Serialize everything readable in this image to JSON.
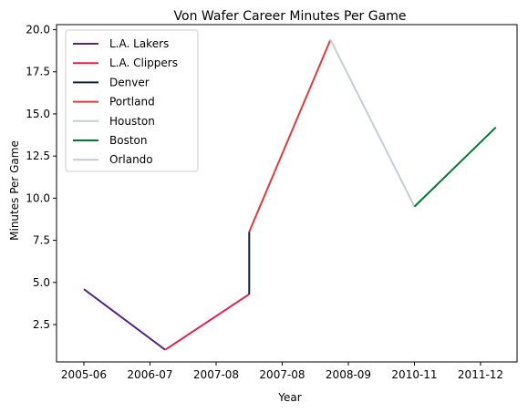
{
  "chart_data": {
    "type": "line",
    "title": "Von Wafer Career Minutes Per Game",
    "xlabel": "Year",
    "ylabel": "Minutes Per Game",
    "x_ticks": [
      "2005-06",
      "2006-07",
      "2007-08",
      "2007-08",
      "2008-09",
      "2010-11",
      "2011-12"
    ],
    "ylim": [
      0.28,
      20.3
    ],
    "y_ticks": [
      2.5,
      5.0,
      7.5,
      10.0,
      12.5,
      15.0,
      17.5,
      20.0
    ],
    "legend_position": "top-left",
    "grid": false,
    "series": [
      {
        "name": "L.A. Lakers",
        "color": "#552583",
        "points": [
          [
            0,
            4.6
          ],
          [
            1.23,
            1.0
          ]
        ]
      },
      {
        "name": "L.A. Clippers",
        "color": "#e0234e",
        "points": [
          [
            1.23,
            1.0
          ],
          [
            2.5,
            4.3
          ]
        ]
      },
      {
        "name": "Denver",
        "color": "#0e2240",
        "points": [
          [
            2.5,
            4.3
          ],
          [
            2.5,
            8.0
          ]
        ]
      },
      {
        "name": "Portland",
        "color": "#e03a3e",
        "points": [
          [
            2.5,
            8.0
          ],
          [
            3.73,
            19.4
          ]
        ]
      },
      {
        "name": "Houston",
        "color": "#c4ced4",
        "points": [
          [
            3.73,
            19.4
          ],
          [
            5.0,
            9.5
          ]
        ]
      },
      {
        "name": "Boston",
        "color": "#007a33",
        "points": [
          [
            5.0,
            9.5
          ],
          [
            6.23,
            14.2
          ]
        ]
      },
      {
        "name": "Orlando",
        "color": "#c4ced4",
        "points": []
      }
    ]
  }
}
